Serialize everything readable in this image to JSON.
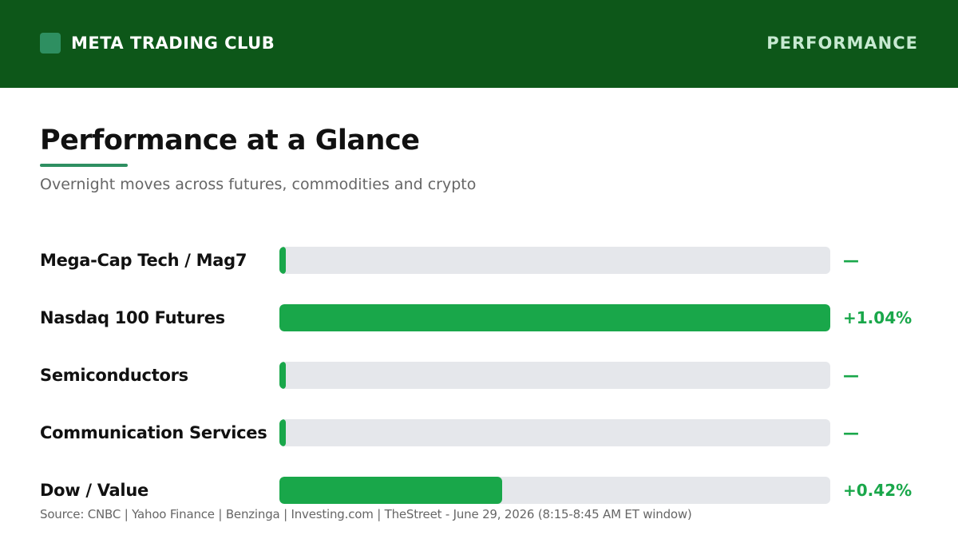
{
  "header": {
    "brand": "META TRADING CLUB",
    "section": "PERFORMANCE",
    "colors": {
      "background": "#0d5719",
      "brand_mark": "#2e8f61"
    }
  },
  "title": "Performance at a Glance",
  "subtitle": "Overnight moves across futures, commodities and crypto",
  "chart_data": {
    "type": "bar",
    "orientation": "horizontal",
    "categories": [
      "Mega-Cap Tech / Mag7",
      "Nasdaq 100 Futures",
      "Semiconductors",
      "Communication Services",
      "Dow / Value"
    ],
    "values": [
      null,
      1.04,
      null,
      null,
      0.42
    ],
    "value_labels": [
      "—",
      "+1.04%",
      "—",
      "—",
      "+0.42%"
    ],
    "xlim": [
      0,
      1.04
    ],
    "grid": false,
    "legend": "none",
    "colors": {
      "bar": "#19a74a",
      "track": "#e5e7eb",
      "value_text": "#19a74a"
    }
  },
  "footer": {
    "source": "Source: CNBC | Yahoo Finance | Benzinga | Investing.com | TheStreet - June 29, 2026 (8:15-8:45 AM ET window)"
  }
}
